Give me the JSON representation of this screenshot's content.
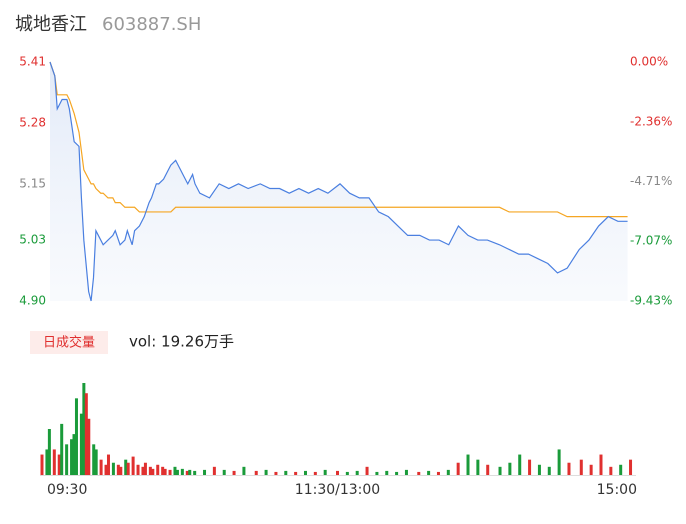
{
  "chart_data": {
    "type": "line",
    "title": "城地香江",
    "subtitle": "603887.SH",
    "x": [
      0,
      2,
      3,
      5,
      7,
      8,
      10,
      12,
      13,
      14,
      16,
      17,
      18,
      19,
      21,
      22,
      24,
      26,
      27,
      29,
      31,
      32,
      34,
      35,
      37,
      39,
      41,
      42,
      44,
      45,
      47,
      49,
      50,
      52,
      54,
      55,
      57,
      59,
      60,
      62,
      66,
      70,
      74,
      78,
      82,
      87,
      91,
      95,
      99,
      103,
      107,
      111,
      115,
      120,
      124,
      128,
      132,
      136,
      140,
      144,
      148,
      153,
      157,
      161,
      165,
      169,
      173,
      177,
      181,
      186,
      190,
      194,
      198,
      202,
      206,
      210,
      214,
      219,
      223,
      227,
      231,
      235,
      239
    ],
    "xlim": [
      0,
      240
    ],
    "xticks": [
      {
        "value": 0,
        "label": "09:30"
      },
      {
        "value": 120,
        "label": "11:30/13:00"
      },
      {
        "value": 240,
        "label": "15:00"
      }
    ],
    "ylim": [
      4.9,
      5.41
    ],
    "yticks": [
      {
        "value": 4.9,
        "label": "4.90"
      },
      5.03,
      5.15,
      5.28,
      5.41
    ],
    "ytick_colors": [
      "#1a9b3a",
      "#1a9b3a",
      "#888888",
      "#e0302f",
      "#e0302f"
    ],
    "y2lim": [
      -9.43,
      0
    ],
    "y2ticks": [
      {
        "value": -9.43,
        "label": "-9.43%"
      },
      {
        "value": -7.07,
        "label": "-7.07%"
      },
      {
        "value": -4.71,
        "label": "-4.71%"
      },
      {
        "value": -2.36,
        "label": "-2.36%"
      },
      {
        "value": 0,
        "label": "0.00%"
      }
    ],
    "series": [
      {
        "color": "#4a7fe0",
        "values": [
          5.41,
          5.38,
          5.31,
          5.33,
          5.33,
          5.31,
          5.24,
          5.23,
          5.12,
          5.03,
          4.92,
          4.9,
          4.95,
          5.05,
          5.03,
          5.02,
          5.03,
          5.04,
          5.05,
          5.02,
          5.03,
          5.05,
          5.02,
          5.05,
          5.06,
          5.08,
          5.11,
          5.12,
          5.15,
          5.15,
          5.16,
          5.18,
          5.19,
          5.2,
          5.18,
          5.17,
          5.15,
          5.17,
          5.15,
          5.13,
          5.12,
          5.15,
          5.14,
          5.15,
          5.14,
          5.15,
          5.14,
          5.14,
          5.13,
          5.14,
          5.13,
          5.14,
          5.13,
          5.15,
          5.13,
          5.12,
          5.12,
          5.09,
          5.08,
          5.06,
          5.04,
          5.04,
          5.03,
          5.03,
          5.02,
          5.06,
          5.04,
          5.03,
          5.03,
          5.02,
          5.01,
          5.0,
          5.0,
          4.99,
          4.98,
          4.96,
          4.97,
          5.01,
          5.03,
          5.06,
          5.08,
          5.07,
          5.07
        ]
      },
      {
        "color": "#f5a623",
        "values": [
          5.41,
          5.38,
          5.34,
          5.34,
          5.34,
          5.33,
          5.3,
          5.26,
          5.22,
          5.18,
          5.16,
          5.15,
          5.15,
          5.14,
          5.13,
          5.13,
          5.12,
          5.12,
          5.11,
          5.11,
          5.1,
          5.1,
          5.1,
          5.1,
          5.09,
          5.09,
          5.09,
          5.09,
          5.09,
          5.09,
          5.09,
          5.09,
          5.09,
          5.1,
          5.1,
          5.1,
          5.1,
          5.1,
          5.1,
          5.1,
          5.1,
          5.1,
          5.1,
          5.1,
          5.1,
          5.1,
          5.1,
          5.1,
          5.1,
          5.1,
          5.1,
          5.1,
          5.1,
          5.1,
          5.1,
          5.1,
          5.1,
          5.1,
          5.1,
          5.1,
          5.1,
          5.1,
          5.1,
          5.1,
          5.1,
          5.1,
          5.1,
          5.1,
          5.1,
          5.1,
          5.09,
          5.09,
          5.09,
          5.09,
          5.09,
          5.09,
          5.08,
          5.08,
          5.08,
          5.08,
          5.08,
          5.08,
          5.08
        ]
      }
    ],
    "volume": {
      "label": "日成交量",
      "summary": "vol: 19.26万手",
      "up_color": "#e0302f",
      "down_color": "#1a9b3a",
      "values": [
        20,
        25,
        45,
        25,
        20,
        50,
        30,
        35,
        40,
        75,
        60,
        90,
        80,
        55,
        30,
        25,
        15,
        10,
        20,
        12,
        10,
        8,
        15,
        12,
        18,
        10,
        8,
        12,
        8,
        6,
        10,
        8,
        6,
        5,
        8,
        5,
        6,
        4,
        5,
        4,
        5,
        8,
        5,
        4,
        8,
        4,
        5,
        3,
        4,
        3,
        4,
        3,
        5,
        4,
        3,
        4,
        8,
        3,
        4,
        3,
        5,
        3,
        4,
        3,
        5,
        12,
        20,
        15,
        10,
        8,
        12,
        20,
        15,
        10,
        8,
        25,
        12,
        15,
        10,
        20,
        8,
        10,
        15
      ]
    }
  }
}
